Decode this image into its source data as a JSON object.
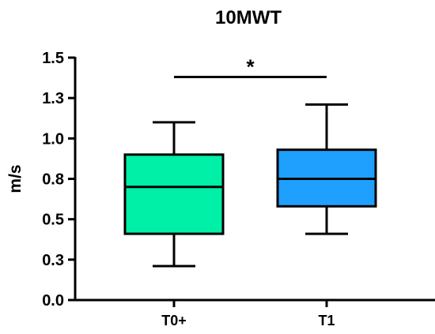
{
  "chart_data": {
    "type": "box",
    "title": "10MWT",
    "xlabel": "",
    "ylabel": "m/s",
    "ylim": [
      0.0,
      1.5
    ],
    "yticks": [
      {
        "value": 0.0,
        "label": "0.0"
      },
      {
        "value": 0.25,
        "label": "0.3"
      },
      {
        "value": 0.5,
        "label": "0.5"
      },
      {
        "value": 0.75,
        "label": "0.8"
      },
      {
        "value": 1.0,
        "label": "1.0"
      },
      {
        "value": 1.25,
        "label": "1.3"
      },
      {
        "value": 1.5,
        "label": "1.5"
      }
    ],
    "categories": [
      "T0+",
      "T1"
    ],
    "boxes": [
      {
        "label": "T0+",
        "whisker_low": 0.21,
        "q1": 0.41,
        "median": 0.7,
        "q3": 0.9,
        "whisker_high": 1.1,
        "color": "#00f0a8"
      },
      {
        "label": "T1",
        "whisker_low": 0.41,
        "q1": 0.58,
        "median": 0.75,
        "q3": 0.93,
        "whisker_high": 1.21,
        "color": "#1fa0ff"
      }
    ],
    "significance": {
      "from": "T0+",
      "to": "T1",
      "label": "*",
      "y": 1.38
    },
    "grid": false,
    "legend": "none"
  }
}
